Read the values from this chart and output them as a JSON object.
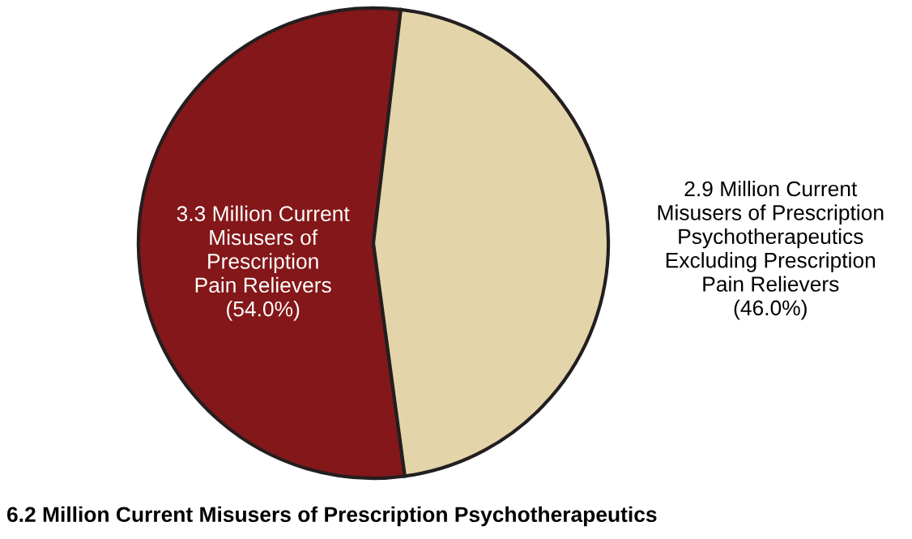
{
  "chart_data": {
    "type": "pie",
    "title": "6.2 Million Current Misusers of Prescription Psychotherapeutics",
    "categories": [
      "3.3 Million Current\nMisusers of\nPrescription\nPain Relievers",
      "2.9 Million Current\nMisusers of Prescription\nPsychotherapeutics\nExcluding Prescription\nPain Relievers"
    ],
    "values": [
      54.0,
      46.0
    ],
    "value_labels": [
      "(54.0%)",
      "(46.0%)"
    ],
    "colors": [
      "#841719",
      "#e4d4a9"
    ]
  }
}
